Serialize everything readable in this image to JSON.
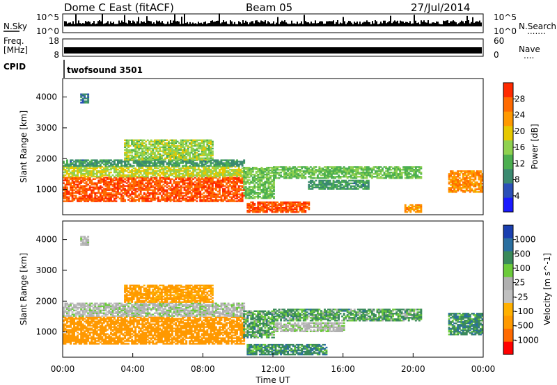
{
  "header": {
    "station": "Dome C East (fitACF)",
    "beam": "Beam 05",
    "date": "27/Jul/2014"
  },
  "nsky_panel": {
    "label": "N.Sky",
    "right_label": "N.Search",
    "right_dots": ".......",
    "left_ticks": [
      "10^5",
      "10^0"
    ],
    "right_ticks": [
      "10^5",
      "10^0"
    ]
  },
  "freq_panel": {
    "label_line1": "Freq.",
    "label_line2": "[MHz]",
    "right_label": "Nave",
    "right_dots": "....",
    "left_ticks": [
      "18",
      "8"
    ],
    "right_ticks": [
      "60",
      "0"
    ]
  },
  "cpid_panel": {
    "label": "CPID",
    "program": "twofsound 3501"
  },
  "colors": {
    "power_scale": [
      "#1a1aff",
      "#2b4fb8",
      "#3b8a70",
      "#4caf50",
      "#8fd14f",
      "#e6c800",
      "#ff9900",
      "#ff6a00",
      "#ff2a00"
    ],
    "velocity_scale": [
      "#ff0000",
      "#ff6a00",
      "#ff9900",
      "#ffb000",
      "#c0c0c0",
      "#b0b0b0",
      "#6ccb3a",
      "#3a8a5a",
      "#2a6fa0",
      "#1a3fb0"
    ]
  },
  "chart_data": [
    {
      "type": "heatmap",
      "name": "power",
      "ylabel": "Slant Range [km]",
      "y_ticks": [
        "1000",
        "2000",
        "3000",
        "4000"
      ],
      "y_tick_values": [
        1000,
        2000,
        3000,
        4000
      ],
      "ylim": [
        180,
        4600
      ],
      "xlim": [
        0,
        24
      ],
      "colorbar": {
        "label": "Power [dB]",
        "ticks": [
          "4",
          "8",
          "12",
          "16",
          "20",
          "24",
          "28"
        ],
        "range": [
          0,
          32
        ]
      },
      "regions": [
        {
          "t0": 0.0,
          "t1": 10.3,
          "r0": 600,
          "r1": 1400,
          "value": 28
        },
        {
          "t0": 0.0,
          "t1": 10.3,
          "r0": 1400,
          "r1": 1750,
          "value": 18
        },
        {
          "t0": 0.0,
          "t1": 10.3,
          "r0": 1750,
          "r1": 1950,
          "value": 10
        },
        {
          "t0": 3.5,
          "t1": 8.5,
          "r0": 1950,
          "r1": 2600,
          "value": 16
        },
        {
          "t0": 10.3,
          "t1": 12.0,
          "r0": 700,
          "r1": 1700,
          "value": 14
        },
        {
          "t0": 10.5,
          "t1": 14.0,
          "r0": 250,
          "r1": 600,
          "value": 28
        },
        {
          "t0": 12.0,
          "t1": 20.5,
          "r0": 1350,
          "r1": 1750,
          "value": 14
        },
        {
          "t0": 14.0,
          "t1": 17.5,
          "r0": 1000,
          "r1": 1300,
          "value": 10
        },
        {
          "t0": 19.5,
          "t1": 20.5,
          "r0": 250,
          "r1": 500,
          "value": 24
        },
        {
          "t0": 22.0,
          "t1": 24.0,
          "r0": 900,
          "r1": 1600,
          "value": 24
        },
        {
          "t0": 1.0,
          "t1": 1.5,
          "r0": 3800,
          "r1": 4100,
          "value": 8
        }
      ]
    },
    {
      "type": "heatmap",
      "name": "velocity",
      "ylabel": "Slant Range [km]",
      "xlabel": "Time UT",
      "x_ticks": [
        "00:00",
        "04:00",
        "08:00",
        "12:00",
        "16:00",
        "20:00",
        "00:00"
      ],
      "x_tick_values": [
        0,
        4,
        8,
        12,
        16,
        20,
        24
      ],
      "y_ticks": [
        "1000",
        "2000",
        "3000",
        "4000"
      ],
      "y_tick_values": [
        1000,
        2000,
        3000,
        4000
      ],
      "ylim": [
        180,
        4600
      ],
      "xlim": [
        0,
        24
      ],
      "colorbar": {
        "label": "Velocity [m s^-1]",
        "ticks": [
          "1000",
          "500",
          "100",
          "25",
          "-25",
          "-100",
          "-500",
          "-1000"
        ]
      },
      "regions": [
        {
          "t0": 0.0,
          "t1": 10.3,
          "r0": 600,
          "r1": 1500,
          "value": -300
        },
        {
          "t0": 0.0,
          "t1": 10.3,
          "r0": 1500,
          "r1": 1950,
          "value": 0
        },
        {
          "t0": 3.5,
          "t1": 8.5,
          "r0": 1950,
          "r1": 2500,
          "value": -120
        },
        {
          "t0": 10.3,
          "t1": 12.0,
          "r0": 800,
          "r1": 1700,
          "value": 60
        },
        {
          "t0": 12.0,
          "t1": 20.5,
          "r0": 1350,
          "r1": 1750,
          "value": 60
        },
        {
          "t0": 12.0,
          "t1": 16.0,
          "r0": 1000,
          "r1": 1300,
          "value": 0
        },
        {
          "t0": 10.5,
          "t1": 15.0,
          "r0": 250,
          "r1": 600,
          "value": 80
        },
        {
          "t0": 22.0,
          "t1": 24.0,
          "r0": 900,
          "r1": 1600,
          "value": 80
        },
        {
          "t0": 1.0,
          "t1": 1.5,
          "r0": 3800,
          "r1": 4100,
          "value": 0
        }
      ]
    }
  ]
}
